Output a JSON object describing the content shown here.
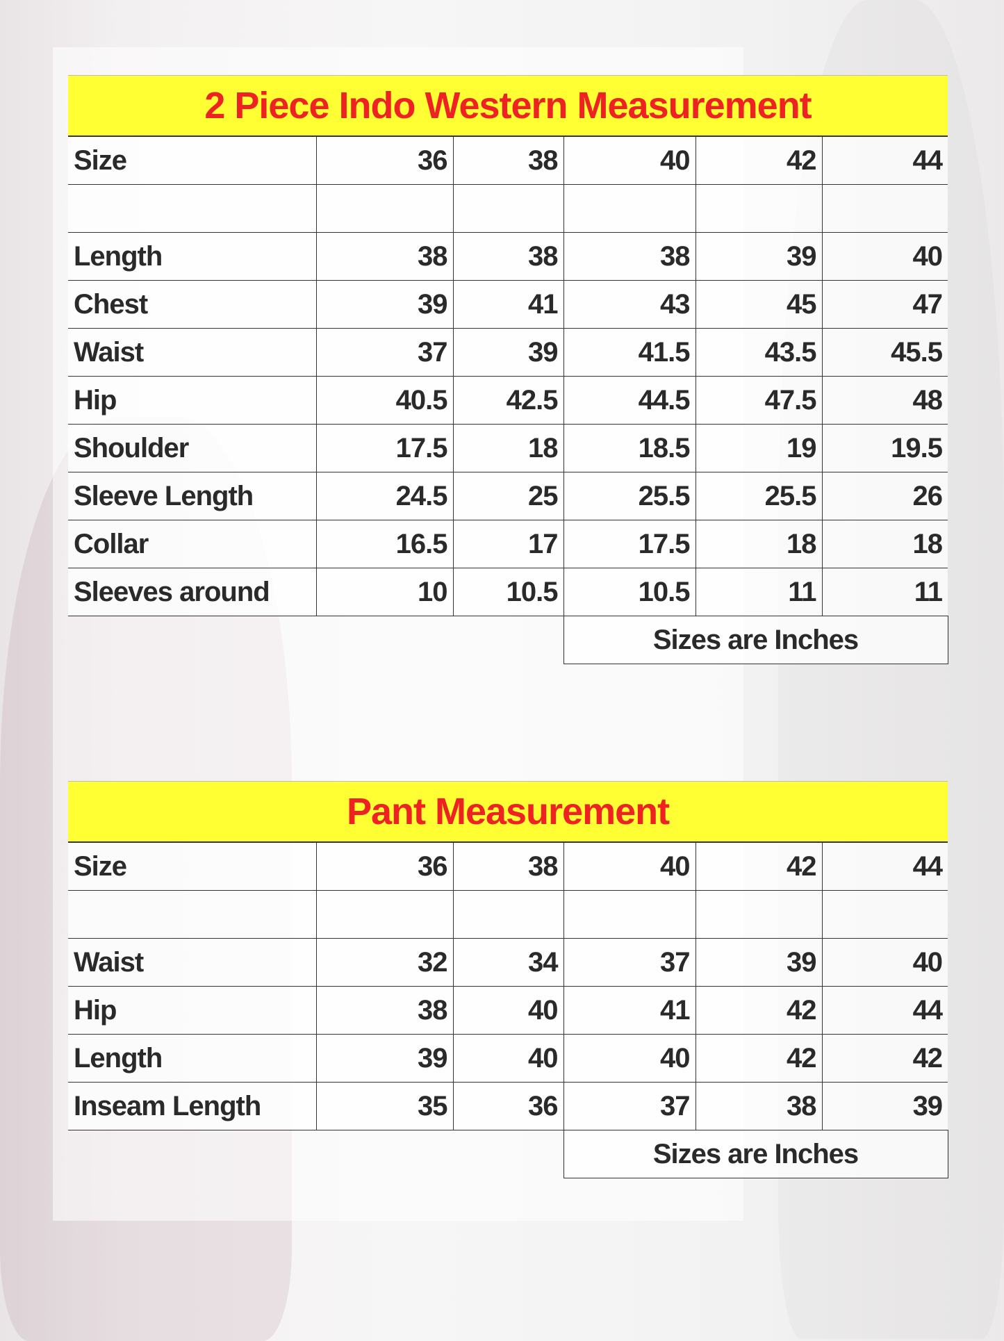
{
  "top_table": {
    "title": "2 Piece Indo Western Measurement",
    "header": {
      "label": "Size",
      "values": [
        "36",
        "38",
        "40",
        "42",
        "44"
      ]
    },
    "rows": [
      {
        "label": "Length",
        "values": [
          "38",
          "38",
          "38",
          "39",
          "40"
        ]
      },
      {
        "label": "Chest",
        "values": [
          "39",
          "41",
          "43",
          "45",
          "47"
        ]
      },
      {
        "label": "Waist",
        "values": [
          "37",
          "39",
          "41.5",
          "43.5",
          "45.5"
        ]
      },
      {
        "label": "Hip",
        "values": [
          "40.5",
          "42.5",
          "44.5",
          "47.5",
          "48"
        ]
      },
      {
        "label": "Shoulder",
        "values": [
          "17.5",
          "18",
          "18.5",
          "19",
          "19.5"
        ]
      },
      {
        "label": "Sleeve Length",
        "values": [
          "24.5",
          "25",
          "25.5",
          "25.5",
          "26"
        ]
      },
      {
        "label": "Collar",
        "values": [
          "16.5",
          "17",
          "17.5",
          "18",
          "18"
        ]
      },
      {
        "label": "Sleeves around",
        "values": [
          "10",
          "10.5",
          "10.5",
          "11",
          "11"
        ]
      }
    ],
    "footer_note": "Sizes are Inches"
  },
  "bottom_table": {
    "title": "Pant Measurement",
    "header": {
      "label": "Size",
      "values": [
        "36",
        "38",
        "40",
        "42",
        "44"
      ]
    },
    "rows": [
      {
        "label": "Waist",
        "values": [
          "32",
          "34",
          "37",
          "39",
          "40"
        ]
      },
      {
        "label": "Hip",
        "values": [
          "38",
          "40",
          "41",
          "42",
          "44"
        ]
      },
      {
        "label": "Length",
        "values": [
          "39",
          "40",
          "40",
          "42",
          "42"
        ]
      },
      {
        "label": "Inseam Length",
        "values": [
          "35",
          "36",
          "37",
          "38",
          "39"
        ]
      }
    ],
    "footer_note": "Sizes are Inches"
  },
  "colors": {
    "title_bg": "#ffff33",
    "title_text": "#ee2222"
  }
}
